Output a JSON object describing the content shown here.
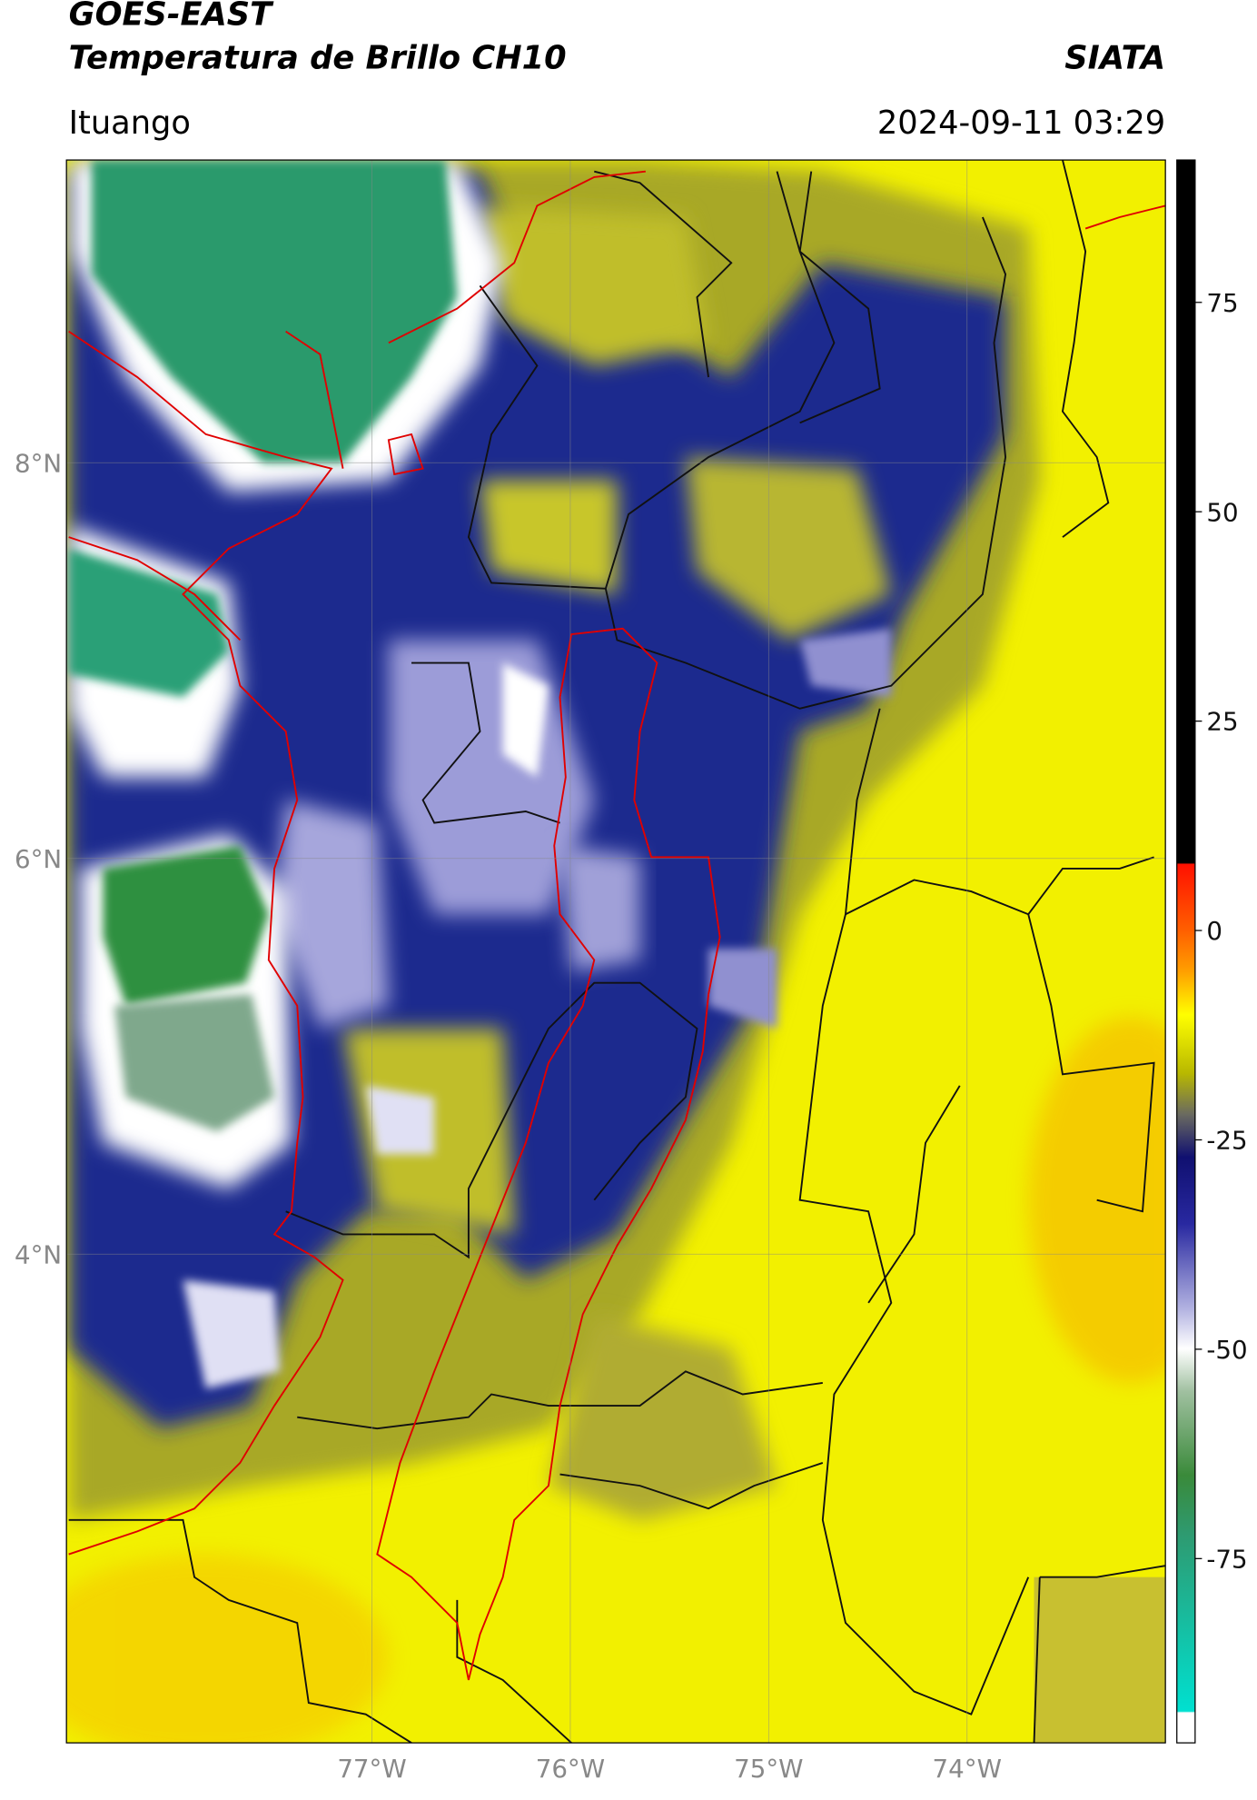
{
  "header": {
    "title": "GOES-EAST",
    "subtitle": "Temperatura de Brillo CH10",
    "source": "SIATA",
    "location": "Ituango",
    "datetime": "2024-09-11 03:29"
  },
  "map": {
    "lon_range": [
      -78.54,
      -73.0
    ],
    "lat_range": [
      1.53,
      9.53
    ],
    "grid": true,
    "lat_ticks": [
      {
        "value": 8,
        "label": "8°N"
      },
      {
        "value": 6,
        "label": "6°N"
      },
      {
        "value": 4,
        "label": "4°N"
      }
    ],
    "lon_ticks": [
      {
        "value": -77,
        "label": "77°W"
      },
      {
        "value": -76,
        "label": "76°W"
      },
      {
        "value": -75,
        "label": "75°W"
      },
      {
        "value": -74,
        "label": "74°W"
      }
    ]
  },
  "colorbar": {
    "range": [
      -97,
      92
    ],
    "ticks": [
      75,
      50,
      25,
      0,
      -25,
      -50,
      -75
    ]
  }
}
